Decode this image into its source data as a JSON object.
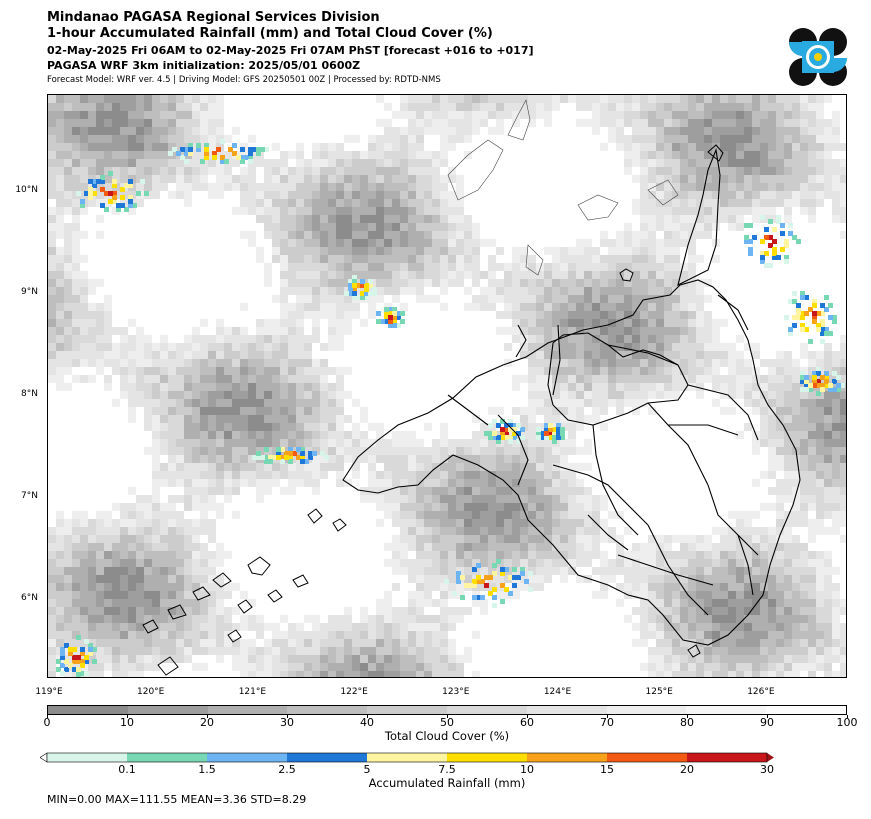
{
  "header": {
    "title": "Mindanao PAGASA Regional Services Division",
    "subtitle": "1-hour Accumulated Rainfall (mm) and Total Cloud Cover (%)",
    "period": "02-May-2025 Fri 06AM to 02-May-2025 Fri 07AM PhST [forecast +016 to +017]",
    "init": "PAGASA WRF 3km initialization: 2025/05/01 0600Z",
    "meta": "Forecast Model: WRF ver. 4.5 | Driving Model: GFS 20250501 00Z | Processed by: RDTD-NMS"
  },
  "map": {
    "lat_labels": [
      "10°N",
      "9°N",
      "8°N",
      "7°N",
      "6°N"
    ],
    "lon_labels": [
      "119°E",
      "120°E",
      "121°E",
      "122°E",
      "123°E",
      "124°E",
      "125°E",
      "126°E"
    ]
  },
  "cloud_colorbar": {
    "label": "Total Cloud Cover (%)",
    "ticks": [
      "0",
      "10",
      "20",
      "30",
      "40",
      "50",
      "60",
      "70",
      "80",
      "90",
      "100"
    ],
    "colors": [
      "#8c8c8c",
      "#9e9e9e",
      "#afafaf",
      "#bebebe",
      "#cccccc",
      "#d9d9d9",
      "#e4e4e4",
      "#eeeeee",
      "#f6f6f6",
      "#fcfcfc"
    ]
  },
  "rain_colorbar": {
    "label": "Accumulated Rainfall (mm)",
    "ticks": [
      "0.1",
      "1.5",
      "2.5",
      "5",
      "7.5",
      "10",
      "15",
      "20",
      "30"
    ],
    "colors": [
      "#ffffff",
      "#d8f5ea",
      "#78d8b4",
      "#6cb4f2",
      "#1f78d8",
      "#fff5a0",
      "#ffde00",
      "#f7a21a",
      "#f25a12",
      "#c8161a",
      "#a01418"
    ]
  },
  "stats": {
    "text": "MIN=0.00   MAX=111.55   MEAN=3.36   STD=8.29"
  }
}
